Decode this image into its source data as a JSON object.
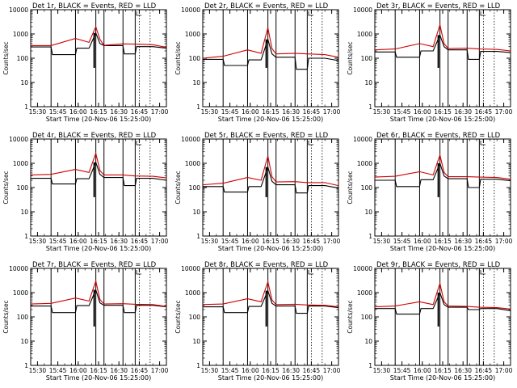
{
  "chart_data": [
    {
      "type": "line",
      "title": "Det 1r, BLACK = Events, RED = LLD",
      "xlabel": "Start Time (20-Nov-06 15:25:00)",
      "ylabel": "Counts/sec",
      "x_ticks": [
        "15:30",
        "15:45",
        "16:00",
        "16:15",
        "16:30",
        "16:45",
        "17:00"
      ],
      "y_ticks": [
        "1",
        "10",
        "100",
        "1000",
        "10000"
      ],
      "ylim": [
        1,
        10000
      ],
      "yscale": "log",
      "xlim": [
        "15:25",
        "17:05"
      ],
      "colors": {
        "events": "#000000",
        "lld": "#d00000"
      },
      "vlines_solid": [
        "15:40",
        "15:58",
        "16:13",
        "16:19",
        "16:33",
        "16:42"
      ],
      "vlines_dotted": [
        "16:45",
        "16:53"
      ],
      "flare_peak": "16:13",
      "series": [
        {
          "name": "BLACK = Events",
          "x": [
            "15:25",
            "15:40",
            "15:41",
            "15:58",
            "15:59",
            "16:08",
            "16:13",
            "16:16",
            "16:19",
            "16:33",
            "16:34",
            "16:42",
            "16:43",
            "16:55",
            "17:05"
          ],
          "values": [
            290,
            290,
            140,
            140,
            260,
            260,
            1100,
            400,
            330,
            330,
            150,
            150,
            300,
            300,
            260
          ]
        },
        {
          "name": "RED = LLD",
          "x": [
            "15:25",
            "15:40",
            "15:58",
            "16:08",
            "16:13",
            "16:16",
            "16:19",
            "16:33",
            "16:42",
            "16:55",
            "17:05"
          ],
          "values": [
            330,
            330,
            650,
            450,
            2000,
            600,
            340,
            390,
            380,
            360,
            280
          ]
        }
      ]
    },
    {
      "type": "line",
      "title": "Det 2r, BLACK = Events, RED = LLD",
      "xlabel": "Start Time (20-Nov-06 15:25:00)",
      "ylabel": "Counts/sec",
      "x_ticks": [
        "15:30",
        "15:45",
        "16:00",
        "16:15",
        "16:30",
        "16:45",
        "17:00"
      ],
      "y_ticks": [
        "1",
        "10",
        "100",
        "1000",
        "10000"
      ],
      "ylim": [
        1,
        10000
      ],
      "yscale": "log",
      "xlim": [
        "15:25",
        "17:05"
      ],
      "colors": {
        "events": "#000000",
        "lld": "#d00000"
      },
      "vlines_solid": [
        "15:40",
        "15:58",
        "16:13",
        "16:19",
        "16:33",
        "16:42"
      ],
      "vlines_dotted": [
        "16:45",
        "16:53"
      ],
      "flare_peak": "16:13",
      "series": [
        {
          "name": "BLACK = Events",
          "x": [
            "15:25",
            "15:40",
            "15:41",
            "15:58",
            "15:59",
            "16:08",
            "16:13",
            "16:16",
            "16:19",
            "16:33",
            "16:34",
            "16:42",
            "16:43",
            "16:55",
            "17:05"
          ],
          "values": [
            90,
            90,
            50,
            50,
            85,
            85,
            600,
            150,
            110,
            110,
            35,
            35,
            100,
            100,
            80
          ]
        },
        {
          "name": "RED = LLD",
          "x": [
            "15:25",
            "15:40",
            "15:58",
            "16:08",
            "16:13",
            "16:16",
            "16:19",
            "16:33",
            "16:42",
            "16:55",
            "17:05"
          ],
          "values": [
            100,
            120,
            220,
            160,
            1800,
            250,
            150,
            160,
            150,
            140,
            110
          ]
        }
      ]
    },
    {
      "type": "line",
      "title": "Det 3r, BLACK = Events, RED = LLD",
      "xlabel": "Start Time (20-Nov-06 15:25:00)",
      "ylabel": "Counts/sec",
      "x_ticks": [
        "15:30",
        "15:45",
        "16:00",
        "16:15",
        "16:30",
        "16:45",
        "17:00"
      ],
      "y_ticks": [
        "1",
        "10",
        "100",
        "1000",
        "10000"
      ],
      "ylim": [
        1,
        10000
      ],
      "yscale": "log",
      "xlim": [
        "15:25",
        "17:05"
      ],
      "colors": {
        "events": "#000000",
        "lld": "#d00000"
      },
      "vlines_solid": [
        "15:40",
        "15:58",
        "16:13",
        "16:19",
        "16:33",
        "16:42"
      ],
      "vlines_dotted": [
        "16:45",
        "16:53"
      ],
      "flare_peak": "16:13",
      "series": [
        {
          "name": "BLACK = Events",
          "x": [
            "15:25",
            "15:40",
            "15:41",
            "15:58",
            "15:59",
            "16:08",
            "16:13",
            "16:16",
            "16:19",
            "16:33",
            "16:34",
            "16:42",
            "16:43",
            "16:55",
            "17:05"
          ],
          "values": [
            180,
            180,
            110,
            110,
            200,
            200,
            900,
            300,
            220,
            220,
            90,
            90,
            190,
            190,
            170
          ]
        },
        {
          "name": "RED = LLD",
          "x": [
            "15:25",
            "15:40",
            "15:58",
            "16:08",
            "16:13",
            "16:16",
            "16:19",
            "16:33",
            "16:42",
            "16:55",
            "17:05"
          ],
          "values": [
            220,
            240,
            400,
            300,
            2400,
            400,
            250,
            260,
            240,
            230,
            200
          ]
        }
      ]
    },
    {
      "type": "line",
      "title": "Det 4r, BLACK = Events, RED = LLD",
      "xlabel": "Start Time (20-Nov-06 15:25:00)",
      "ylabel": "Counts/sec",
      "x_ticks": [
        "15:30",
        "15:45",
        "16:00",
        "16:15",
        "16:30",
        "16:45",
        "17:00"
      ],
      "y_ticks": [
        "1",
        "10",
        "100",
        "1000",
        "10000"
      ],
      "ylim": [
        1,
        10000
      ],
      "yscale": "log",
      "xlim": [
        "15:25",
        "17:05"
      ],
      "colors": {
        "events": "#000000",
        "lld": "#d00000"
      },
      "vlines_solid": [
        "15:40",
        "15:58",
        "16:13",
        "16:19",
        "16:33",
        "16:42"
      ],
      "vlines_dotted": [
        "16:45",
        "16:53"
      ],
      "flare_peak": "16:13",
      "series": [
        {
          "name": "BLACK = Events",
          "x": [
            "15:25",
            "15:40",
            "15:41",
            "15:58",
            "15:59",
            "16:08",
            "16:13",
            "16:16",
            "16:19",
            "16:33",
            "16:34",
            "16:42",
            "16:43",
            "16:55",
            "17:05"
          ],
          "values": [
            240,
            240,
            140,
            140,
            230,
            230,
            1100,
            350,
            260,
            260,
            120,
            120,
            240,
            240,
            200
          ]
        },
        {
          "name": "RED = LLD",
          "x": [
            "15:25",
            "15:40",
            "15:58",
            "16:08",
            "16:13",
            "16:16",
            "16:19",
            "16:33",
            "16:42",
            "16:55",
            "17:05"
          ],
          "values": [
            330,
            350,
            560,
            420,
            2600,
            500,
            330,
            330,
            300,
            290,
            250
          ]
        }
      ]
    },
    {
      "type": "line",
      "title": "Det 5r, BLACK = Events, RED = LLD",
      "xlabel": "Start Time (20-Nov-06 15:25:00)",
      "ylabel": "Counts/sec",
      "x_ticks": [
        "15:30",
        "15:45",
        "16:00",
        "16:15",
        "16:30",
        "16:45",
        "17:00"
      ],
      "y_ticks": [
        "1",
        "10",
        "100",
        "1000",
        "10000"
      ],
      "ylim": [
        1,
        10000
      ],
      "yscale": "log",
      "xlim": [
        "15:25",
        "17:05"
      ],
      "colors": {
        "events": "#000000",
        "lld": "#d00000"
      },
      "vlines_solid": [
        "15:40",
        "15:58",
        "16:13",
        "16:19",
        "16:33",
        "16:42"
      ],
      "vlines_dotted": [
        "16:45",
        "16:53"
      ],
      "flare_peak": "16:13",
      "series": [
        {
          "name": "BLACK = Events",
          "x": [
            "15:25",
            "15:40",
            "15:41",
            "15:58",
            "15:59",
            "16:08",
            "16:13",
            "16:16",
            "16:19",
            "16:33",
            "16:34",
            "16:42",
            "16:43",
            "16:55",
            "17:05"
          ],
          "values": [
            110,
            110,
            65,
            65,
            110,
            110,
            700,
            180,
            130,
            130,
            60,
            60,
            120,
            120,
            95
          ]
        },
        {
          "name": "RED = LLD",
          "x": [
            "15:25",
            "15:40",
            "15:58",
            "16:08",
            "16:13",
            "16:16",
            "16:19",
            "16:33",
            "16:42",
            "16:55",
            "17:05"
          ],
          "values": [
            130,
            150,
            260,
            200,
            2000,
            280,
            170,
            175,
            160,
            160,
            120
          ]
        }
      ]
    },
    {
      "type": "line",
      "title": "Det 6r, BLACK = Events, RED = LLD",
      "xlabel": "Start Time (20-Nov-06 15:25:00)",
      "ylabel": "Counts/sec",
      "x_ticks": [
        "15:30",
        "15:45",
        "16:00",
        "16:15",
        "16:30",
        "16:45",
        "17:00"
      ],
      "y_ticks": [
        "1",
        "10",
        "100",
        "1000",
        "10000"
      ],
      "ylim": [
        1,
        10000
      ],
      "yscale": "log",
      "xlim": [
        "15:25",
        "17:05"
      ],
      "colors": {
        "events": "#000000",
        "lld": "#d00000"
      },
      "vlines_solid": [
        "15:40",
        "15:58",
        "16:13",
        "16:19",
        "16:33",
        "16:42"
      ],
      "vlines_dotted": [
        "16:45",
        "16:53"
      ],
      "flare_peak": "16:13",
      "series": [
        {
          "name": "BLACK = Events",
          "x": [
            "15:25",
            "15:40",
            "15:41",
            "15:58",
            "15:59",
            "16:08",
            "16:13",
            "16:16",
            "16:19",
            "16:33",
            "16:34",
            "16:42",
            "16:43",
            "16:55",
            "17:05"
          ],
          "values": [
            200,
            200,
            110,
            110,
            210,
            210,
            1000,
            300,
            230,
            230,
            100,
            100,
            220,
            220,
            190
          ]
        },
        {
          "name": "RED = LLD",
          "x": [
            "15:25",
            "15:40",
            "15:58",
            "16:08",
            "16:13",
            "16:16",
            "16:19",
            "16:33",
            "16:42",
            "16:55",
            "17:05"
          ],
          "values": [
            270,
            290,
            450,
            330,
            2200,
            420,
            280,
            280,
            270,
            260,
            220
          ]
        }
      ]
    },
    {
      "type": "line",
      "title": "Det 7r, BLACK = Events, RED = LLD",
      "xlabel": "Start Time (20-Nov-06 15:25:00)",
      "ylabel": "Counts/sec",
      "x_ticks": [
        "15:30",
        "15:45",
        "16:00",
        "16:15",
        "16:30",
        "16:45",
        "17:00"
      ],
      "y_ticks": [
        "1",
        "10",
        "100",
        "1000",
        "10000"
      ],
      "ylim": [
        1,
        10000
      ],
      "yscale": "log",
      "xlim": [
        "15:25",
        "17:05"
      ],
      "colors": {
        "events": "#000000",
        "lld": "#d00000"
      },
      "vlines_solid": [
        "15:40",
        "15:58",
        "16:13",
        "16:19",
        "16:33",
        "16:42"
      ],
      "vlines_dotted": [
        "16:45",
        "16:53"
      ],
      "flare_peak": "16:13",
      "series": [
        {
          "name": "BLACK = Events",
          "x": [
            "15:25",
            "15:40",
            "15:41",
            "15:58",
            "15:59",
            "16:08",
            "16:13",
            "16:16",
            "16:19",
            "16:33",
            "16:34",
            "16:42",
            "16:43",
            "16:55",
            "17:05"
          ],
          "values": [
            280,
            280,
            150,
            150,
            290,
            290,
            1300,
            380,
            300,
            300,
            150,
            150,
            300,
            300,
            260
          ]
        },
        {
          "name": "RED = LLD",
          "x": [
            "15:25",
            "15:40",
            "15:58",
            "16:08",
            "16:13",
            "16:16",
            "16:19",
            "16:33",
            "16:42",
            "16:55",
            "17:05"
          ],
          "values": [
            340,
            360,
            600,
            450,
            3000,
            520,
            340,
            350,
            330,
            320,
            270
          ]
        }
      ]
    },
    {
      "type": "line",
      "title": "Det 8r, BLACK = Events, RED = LLD",
      "xlabel": "Start Time (20-Nov-06 15:25:00)",
      "ylabel": "Counts/sec",
      "x_ticks": [
        "15:30",
        "15:45",
        "16:00",
        "16:15",
        "16:30",
        "16:45",
        "17:00"
      ],
      "y_ticks": [
        "1",
        "10",
        "100",
        "1000",
        "10000"
      ],
      "ylim": [
        1,
        10000
      ],
      "yscale": "log",
      "xlim": [
        "15:25",
        "17:05"
      ],
      "colors": {
        "events": "#000000",
        "lld": "#d00000"
      },
      "vlines_solid": [
        "15:40",
        "15:58",
        "16:13",
        "16:19",
        "16:33",
        "16:42"
      ],
      "vlines_dotted": [
        "16:45",
        "16:53"
      ],
      "flare_peak": "16:13",
      "series": [
        {
          "name": "BLACK = Events",
          "x": [
            "15:25",
            "15:40",
            "15:41",
            "15:58",
            "15:59",
            "16:08",
            "16:13",
            "16:16",
            "16:19",
            "16:33",
            "16:34",
            "16:42",
            "16:43",
            "16:55",
            "17:05"
          ],
          "values": [
            260,
            260,
            150,
            150,
            270,
            270,
            1200,
            360,
            280,
            280,
            140,
            140,
            280,
            280,
            240
          ]
        },
        {
          "name": "RED = LLD",
          "x": [
            "15:25",
            "15:40",
            "15:58",
            "16:08",
            "16:13",
            "16:16",
            "16:19",
            "16:33",
            "16:42",
            "16:55",
            "17:05"
          ],
          "values": [
            320,
            340,
            560,
            420,
            2800,
            500,
            320,
            330,
            310,
            300,
            260
          ]
        }
      ]
    },
    {
      "type": "line",
      "title": "Det 9r, BLACK = Events, RED = LLD",
      "xlabel": "Start Time (20-Nov-06 15:25:00)",
      "ylabel": "Counts/sec",
      "x_ticks": [
        "15:30",
        "15:45",
        "16:00",
        "16:15",
        "16:30",
        "16:45",
        "17:00"
      ],
      "y_ticks": [
        "1",
        "10",
        "100",
        "1000",
        "10000"
      ],
      "ylim": [
        1,
        10000
      ],
      "yscale": "log",
      "xlim": [
        "15:25",
        "17:05"
      ],
      "colors": {
        "events": "#000000",
        "lld": "#d00000"
      },
      "vlines_solid": [
        "15:40",
        "15:58",
        "16:13",
        "16:19",
        "16:33",
        "16:42"
      ],
      "vlines_dotted": [
        "16:45",
        "16:53"
      ],
      "flare_peak": "16:13",
      "series": [
        {
          "name": "BLACK = Events",
          "x": [
            "15:25",
            "15:40",
            "15:41",
            "15:58",
            "15:59",
            "16:08",
            "16:13",
            "16:16",
            "16:19",
            "16:33",
            "16:34",
            "16:42",
            "16:43",
            "16:55",
            "17:05"
          ],
          "values": [
            220,
            220,
            130,
            130,
            220,
            220,
            1000,
            320,
            250,
            250,
            200,
            200,
            220,
            220,
            180
          ]
        },
        {
          "name": "RED = LLD",
          "x": [
            "15:25",
            "15:40",
            "15:58",
            "16:08",
            "16:13",
            "16:16",
            "16:19",
            "16:33",
            "16:42",
            "16:55",
            "17:05"
          ],
          "values": [
            260,
            280,
            420,
            320,
            2400,
            420,
            280,
            270,
            250,
            240,
            210
          ]
        }
      ]
    }
  ]
}
